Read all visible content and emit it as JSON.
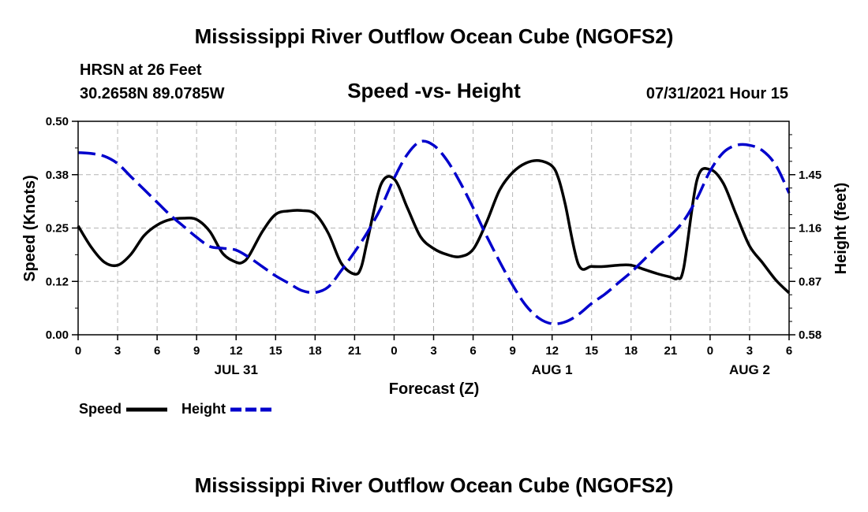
{
  "header": {
    "title": "Mississippi River Outflow Ocean Cube (NGOFS2)",
    "station": "HRSN at 26 Feet",
    "coords": "30.2658N  89.0785W",
    "subtitle": "Speed -vs- Height",
    "datetime": "07/31/2021 Hour 15"
  },
  "footer": {
    "title": "Mississippi River Outflow Ocean Cube (NGOFS2)"
  },
  "legend": {
    "speed_label": "Speed",
    "height_label": "Height"
  },
  "colors": {
    "speed": "#000000",
    "height": "#0000cc",
    "grid": "#b4b4b4"
  },
  "chart_data": {
    "type": "line",
    "title": "Speed -vs- Height",
    "xlabel": "Forecast (Z)",
    "ylabel": "Speed (Knots)",
    "y2label": "Height (feet)",
    "xlim": [
      0,
      54
    ],
    "ylim": [
      0,
      0.5
    ],
    "y2lim": [
      0.58,
      1.74
    ],
    "x_ticks": [
      0,
      3,
      6,
      9,
      12,
      15,
      18,
      21,
      24,
      27,
      30,
      33,
      36,
      39,
      42,
      45,
      48,
      51,
      54
    ],
    "x_tick_labels": [
      "0",
      "3",
      "6",
      "9",
      "12",
      "15",
      "18",
      "21",
      "0",
      "3",
      "6",
      "9",
      "12",
      "15",
      "18",
      "21",
      "0",
      "3",
      "6"
    ],
    "y_ticks": [
      0.0,
      0.125,
      0.25,
      0.375,
      0.5
    ],
    "y_tick_labels": [
      "0.00",
      "0.12",
      "0.25",
      "0.38",
      "0.50"
    ],
    "y2_ticks": [
      0.58,
      0.87,
      1.16,
      1.45
    ],
    "y2_tick_labels": [
      "0.58",
      "0.87",
      "1.16",
      "1.45"
    ],
    "date_labels": [
      {
        "x": 12,
        "label": "JUL 31"
      },
      {
        "x": 36,
        "label": "AUG 1"
      },
      {
        "x": 51,
        "label": "AUG 2"
      }
    ],
    "grid": true,
    "series": [
      {
        "name": "Speed",
        "axis": "left",
        "style": "solid",
        "x": [
          0,
          1,
          2,
          3,
          4,
          5,
          6,
          7,
          8,
          9,
          10,
          11,
          12,
          12.5,
          13,
          14,
          15,
          16,
          17,
          18,
          19,
          20,
          21,
          21.5,
          22,
          23,
          24,
          25,
          26,
          27,
          28,
          29,
          30,
          31,
          32,
          33,
          34,
          35,
          36,
          36.5,
          37,
          38,
          39,
          40,
          41,
          42,
          43,
          44,
          45,
          45.5,
          46,
          47,
          48,
          49,
          50,
          51,
          52,
          53,
          54
        ],
        "values": [
          0.255,
          0.205,
          0.17,
          0.163,
          0.188,
          0.232,
          0.257,
          0.27,
          0.273,
          0.27,
          0.242,
          0.19,
          0.17,
          0.17,
          0.186,
          0.242,
          0.282,
          0.29,
          0.291,
          0.283,
          0.238,
          0.167,
          0.142,
          0.158,
          0.225,
          0.352,
          0.365,
          0.298,
          0.23,
          0.202,
          0.188,
          0.183,
          0.2,
          0.262,
          0.338,
          0.38,
          0.402,
          0.408,
          0.395,
          0.365,
          0.305,
          0.165,
          0.16,
          0.16,
          0.163,
          0.163,
          0.153,
          0.143,
          0.135,
          0.132,
          0.157,
          0.362,
          0.387,
          0.355,
          0.28,
          0.208,
          0.168,
          0.128,
          0.098
        ]
      },
      {
        "name": "Height",
        "axis": "right",
        "style": "dashed",
        "x": [
          0,
          1,
          2,
          3,
          4,
          5,
          6,
          7,
          8,
          9,
          10,
          11,
          12,
          13,
          14,
          15,
          16,
          17,
          18,
          19,
          20,
          21,
          22,
          23,
          24,
          25,
          26,
          27,
          28,
          29,
          30,
          31,
          32,
          33,
          34,
          35,
          36,
          37,
          38,
          39,
          40,
          41,
          42,
          43,
          44,
          45,
          46,
          47,
          48,
          49,
          50,
          51,
          52,
          53,
          54
        ],
        "values": [
          1.57,
          1.565,
          1.55,
          1.51,
          1.44,
          1.37,
          1.3,
          1.23,
          1.17,
          1.11,
          1.06,
          1.05,
          1.04,
          1.0,
          0.95,
          0.9,
          0.86,
          0.82,
          0.81,
          0.84,
          0.93,
          1.03,
          1.14,
          1.27,
          1.43,
          1.56,
          1.63,
          1.61,
          1.53,
          1.41,
          1.27,
          1.12,
          0.98,
          0.85,
          0.74,
          0.67,
          0.64,
          0.65,
          0.69,
          0.75,
          0.8,
          0.86,
          0.92,
          0.99,
          1.06,
          1.12,
          1.2,
          1.32,
          1.47,
          1.57,
          1.61,
          1.61,
          1.58,
          1.5,
          1.35
        ]
      }
    ]
  }
}
